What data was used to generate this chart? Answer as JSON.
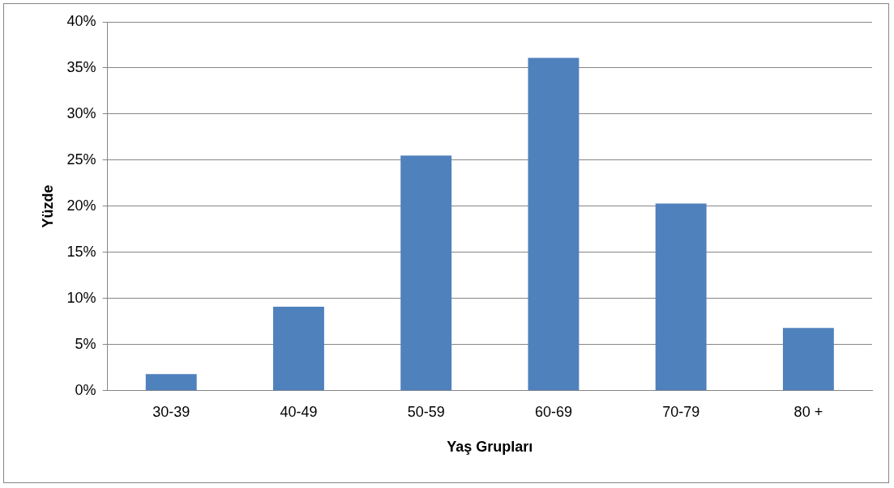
{
  "chart_data": {
    "type": "bar",
    "xlabel": "Yaş Grupları",
    "ylabel": "Yüzde",
    "categories": [
      "30-39",
      "40-49",
      "50-59",
      "60-69",
      "70-79",
      "80 +"
    ],
    "values": [
      1.8,
      9.1,
      25.5,
      36.1,
      20.3,
      6.8
    ],
    "color": "#4f81bd",
    "ylim": [
      0,
      40
    ],
    "yticks": [
      {
        "value": 0,
        "label": "0%"
      },
      {
        "value": 5,
        "label": "5%"
      },
      {
        "value": 10,
        "label": "10%"
      },
      {
        "value": 15,
        "label": "15%"
      },
      {
        "value": 20,
        "label": "20%"
      },
      {
        "value": 25,
        "label": "25%"
      },
      {
        "value": 30,
        "label": "30%"
      },
      {
        "value": 35,
        "label": "35%"
      },
      {
        "value": 40,
        "label": "40%"
      }
    ],
    "grid": "y",
    "legend": false
  }
}
